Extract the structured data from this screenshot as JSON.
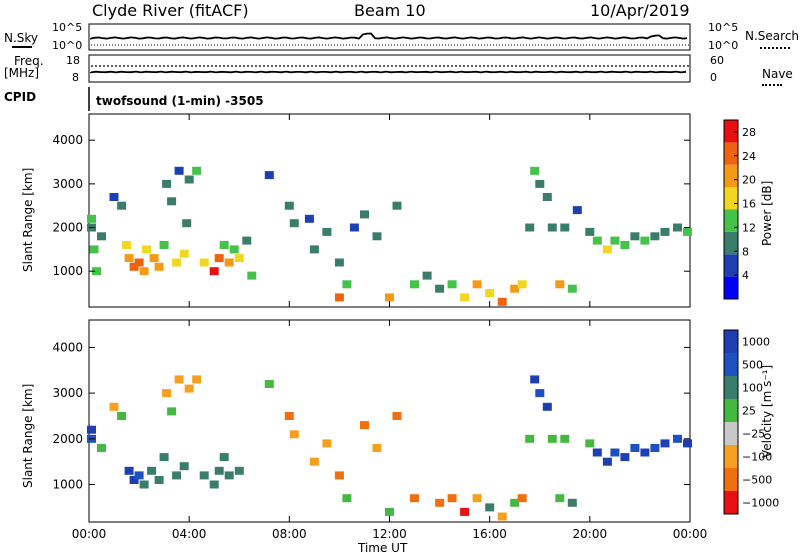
{
  "header": {
    "title": "Clyde River (fitACF)",
    "beam": "Beam 10",
    "date": "10/Apr/2019"
  },
  "status_panels": {
    "nsky_label": "N.Sky",
    "nsky_ticks": [
      "10^5",
      "10^0"
    ],
    "nsearch_label": "N.Search",
    "nsearch_ticks": [
      "10^5",
      "10^0"
    ],
    "freq_label": "Freq.",
    "freq_unit": "[MHz]",
    "freq_ticks": [
      "18",
      "8"
    ],
    "nave_label": "Nave",
    "nave_ticks": [
      "60",
      "0"
    ],
    "cpid_label": "CPID",
    "cpid_text": "twofsound (1-min) -3505"
  },
  "chart_data": [
    {
      "type": "heatmap",
      "title": "",
      "xlabel": "Time UT",
      "ylabel": "Slant Range [km]",
      "colorbar_label": "Power [dB]",
      "x_ticks": [
        "00:00",
        "04:00",
        "08:00",
        "12:00",
        "16:00",
        "20:00",
        "00:00"
      ],
      "x_range_hours": [
        0,
        24
      ],
      "y_ticks": [
        1000,
        2000,
        3000,
        4000
      ],
      "y_range_km": [
        180,
        4600
      ],
      "colorbar_ticks": [
        4,
        8,
        12,
        16,
        20,
        24,
        28
      ],
      "colorbar_range": [
        0,
        30
      ],
      "colors": [
        "#0000ff",
        "#1e3fb4",
        "#3a7d6a",
        "#44c24a",
        "#f0d820",
        "#f59a14",
        "#ee6210",
        "#e81010"
      ],
      "series": [
        {
          "name": "",
          "values": [
            [
              0.1,
              2200,
              12
            ],
            [
              0.1,
              2000,
              10
            ],
            [
              0.2,
              1500,
              14
            ],
            [
              0.3,
              1000,
              12
            ],
            [
              0.5,
              1800,
              8
            ],
            [
              1.0,
              2700,
              6
            ],
            [
              1.3,
              2500,
              10
            ],
            [
              1.5,
              1600,
              18
            ],
            [
              1.6,
              1300,
              22
            ],
            [
              1.8,
              1100,
              26
            ],
            [
              2.0,
              1200,
              24
            ],
            [
              2.2,
              1000,
              20
            ],
            [
              2.3,
              1500,
              16
            ],
            [
              2.6,
              1300,
              22
            ],
            [
              2.8,
              1100,
              20
            ],
            [
              3.0,
              1600,
              14
            ],
            [
              3.1,
              3000,
              8
            ],
            [
              3.3,
              2600,
              10
            ],
            [
              3.5,
              1200,
              18
            ],
            [
              3.6,
              3300,
              6
            ],
            [
              3.8,
              1400,
              16
            ],
            [
              3.9,
              2100,
              8
            ],
            [
              4.0,
              3100,
              10
            ],
            [
              4.3,
              3300,
              12
            ],
            [
              4.6,
              1200,
              16
            ],
            [
              5.0,
              1000,
              28
            ],
            [
              5.2,
              1300,
              24
            ],
            [
              5.4,
              1600,
              14
            ],
            [
              5.6,
              1200,
              20
            ],
            [
              5.8,
              1500,
              12
            ],
            [
              6.0,
              1300,
              16
            ],
            [
              6.3,
              1700,
              10
            ],
            [
              6.5,
              900,
              12
            ],
            [
              7.2,
              3200,
              6
            ],
            [
              8.0,
              2500,
              8
            ],
            [
              8.2,
              2100,
              10
            ],
            [
              8.8,
              2200,
              6
            ],
            [
              9.0,
              1500,
              8
            ],
            [
              9.5,
              1900,
              8
            ],
            [
              10.0,
              1200,
              10
            ],
            [
              10.0,
              400,
              26
            ],
            [
              10.3,
              700,
              12
            ],
            [
              10.6,
              2000,
              6
            ],
            [
              11.0,
              2300,
              8
            ],
            [
              11.5,
              1800,
              8
            ],
            [
              12.0,
              400,
              20
            ],
            [
              12.3,
              2500,
              10
            ],
            [
              13.0,
              700,
              14
            ],
            [
              13.5,
              900,
              8
            ],
            [
              14.0,
              600,
              10
            ],
            [
              14.5,
              700,
              12
            ],
            [
              15.0,
              400,
              18
            ],
            [
              15.5,
              700,
              20
            ],
            [
              16.0,
              500,
              16
            ],
            [
              16.5,
              300,
              24
            ],
            [
              17.0,
              600,
              22
            ],
            [
              17.3,
              700,
              18
            ],
            [
              17.6,
              2000,
              10
            ],
            [
              17.8,
              3300,
              12
            ],
            [
              18.0,
              3000,
              10
            ],
            [
              18.3,
              2700,
              8
            ],
            [
              18.5,
              2000,
              8
            ],
            [
              18.8,
              700,
              20
            ],
            [
              19.0,
              2000,
              10
            ],
            [
              19.3,
              600,
              14
            ],
            [
              19.5,
              2400,
              6
            ],
            [
              20.0,
              1900,
              8
            ],
            [
              20.3,
              1700,
              14
            ],
            [
              20.7,
              1500,
              16
            ],
            [
              21.0,
              1700,
              12
            ],
            [
              21.4,
              1600,
              14
            ],
            [
              21.8,
              1800,
              10
            ],
            [
              22.2,
              1700,
              14
            ],
            [
              22.6,
              1800,
              10
            ],
            [
              23.0,
              1900,
              8
            ],
            [
              23.5,
              2000,
              10
            ],
            [
              23.9,
              1900,
              12
            ]
          ]
        }
      ]
    },
    {
      "type": "heatmap",
      "title": "",
      "xlabel": "Time UT",
      "ylabel": "Slant Range [km]",
      "colorbar_label": "Velocity [m s⁻¹]",
      "x_ticks": [
        "00:00",
        "04:00",
        "08:00",
        "12:00",
        "16:00",
        "20:00",
        "00:00"
      ],
      "x_range_hours": [
        0,
        24
      ],
      "y_ticks": [
        1000,
        2000,
        3000,
        4000
      ],
      "y_range_km": [
        180,
        4600
      ],
      "colorbar_ticks": [
        "1000",
        "500",
        "100",
        "25",
        "−25",
        "−100",
        "−500",
        "−1000"
      ],
      "colors": [
        "#1e3fb4",
        "#1e50c0",
        "#3a7d6a",
        "#44b840",
        "#c8c8c8",
        "#f5a020",
        "#f07010",
        "#e81010"
      ],
      "series": [
        {
          "name": "",
          "values": [
            [
              0.1,
              2200,
              "1000"
            ],
            [
              0.1,
              2000,
              "500"
            ],
            [
              0.5,
              1800,
              "25"
            ],
            [
              1.0,
              2700,
              "-100"
            ],
            [
              1.3,
              2500,
              "25"
            ],
            [
              1.6,
              1300,
              "1000"
            ],
            [
              1.8,
              1100,
              "1000"
            ],
            [
              2.0,
              1200,
              "500"
            ],
            [
              2.2,
              1000,
              "100"
            ],
            [
              2.5,
              1300,
              "100"
            ],
            [
              2.8,
              1100,
              "100"
            ],
            [
              3.0,
              1600,
              "100"
            ],
            [
              3.1,
              3000,
              "-100"
            ],
            [
              3.3,
              2600,
              "25"
            ],
            [
              3.5,
              1200,
              "100"
            ],
            [
              3.6,
              3300,
              "-100"
            ],
            [
              3.8,
              1400,
              "100"
            ],
            [
              4.0,
              3100,
              "-100"
            ],
            [
              4.3,
              3300,
              "-100"
            ],
            [
              4.6,
              1200,
              "100"
            ],
            [
              5.0,
              1000,
              "100"
            ],
            [
              5.2,
              1300,
              "100"
            ],
            [
              5.4,
              1600,
              "100"
            ],
            [
              5.6,
              1200,
              "100"
            ],
            [
              6.0,
              1300,
              "100"
            ],
            [
              7.2,
              3200,
              "25"
            ],
            [
              8.0,
              2500,
              "-500"
            ],
            [
              8.2,
              2100,
              "-100"
            ],
            [
              9.0,
              1500,
              "-100"
            ],
            [
              9.5,
              1900,
              "-100"
            ],
            [
              10.0,
              1200,
              "-500"
            ],
            [
              10.3,
              700,
              "25"
            ],
            [
              11.0,
              2300,
              "-500"
            ],
            [
              11.5,
              1800,
              "-100"
            ],
            [
              12.0,
              400,
              "25"
            ],
            [
              12.3,
              2500,
              "-500"
            ],
            [
              13.0,
              700,
              "-500"
            ],
            [
              14.0,
              600,
              "-500"
            ],
            [
              14.5,
              700,
              "-500"
            ],
            [
              15.0,
              400,
              "-1000"
            ],
            [
              15.5,
              700,
              "-100"
            ],
            [
              16.0,
              500,
              "100"
            ],
            [
              16.5,
              300,
              "-100"
            ],
            [
              17.0,
              600,
              "25"
            ],
            [
              17.3,
              700,
              "-500"
            ],
            [
              17.6,
              2000,
              "25"
            ],
            [
              17.8,
              3300,
              "1000"
            ],
            [
              18.0,
              3000,
              "500"
            ],
            [
              18.3,
              2700,
              "1000"
            ],
            [
              18.5,
              2000,
              "25"
            ],
            [
              18.8,
              700,
              "25"
            ],
            [
              19.0,
              2000,
              "25"
            ],
            [
              19.3,
              600,
              "100"
            ],
            [
              20.0,
              1900,
              "25"
            ],
            [
              20.3,
              1700,
              "1000"
            ],
            [
              20.7,
              1500,
              "1000"
            ],
            [
              21.0,
              1700,
              "500"
            ],
            [
              21.4,
              1600,
              "1000"
            ],
            [
              21.8,
              1800,
              "500"
            ],
            [
              22.2,
              1700,
              "1000"
            ],
            [
              22.6,
              1800,
              "500"
            ],
            [
              23.0,
              1900,
              "1000"
            ],
            [
              23.5,
              2000,
              "500"
            ],
            [
              23.9,
              1900,
              "1000"
            ]
          ]
        }
      ]
    }
  ]
}
